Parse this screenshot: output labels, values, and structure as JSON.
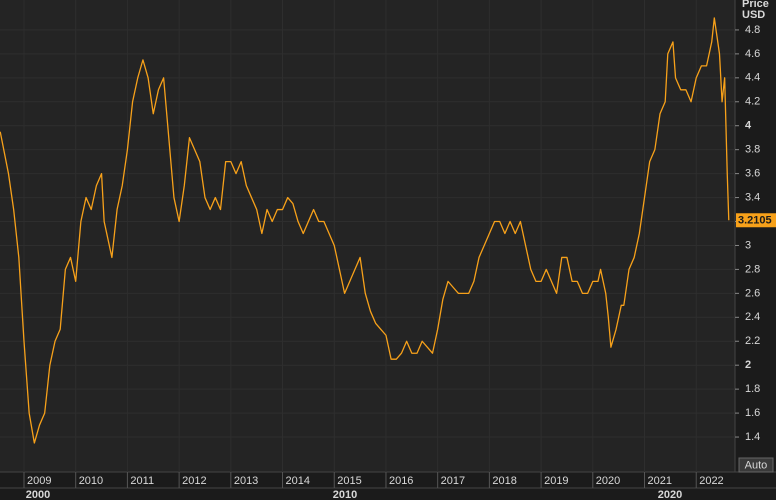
{
  "chart_data": {
    "type": "line",
    "axis_title": [
      "Price",
      "USD"
    ],
    "x_group_labels": [
      "2000",
      "2010",
      "2020"
    ],
    "button": "Auto",
    "last_value_label": "3.2105",
    "xlim": [
      2008.536,
      2022.75
    ],
    "xticks": [
      2009,
      2010,
      2011,
      2012,
      2013,
      2014,
      2015,
      2016,
      2017,
      2018,
      2019,
      2020,
      2021,
      2022
    ],
    "ylim": [
      1.108,
      5.05
    ],
    "yticks": [
      1.4,
      1.6,
      1.8,
      2,
      2.2,
      2.4,
      2.6,
      2.8,
      3,
      3.2,
      3.4,
      3.6,
      3.8,
      4,
      4.2,
      4.4,
      4.6,
      4.8
    ],
    "bold_yticks": [
      2,
      4
    ],
    "grid": true,
    "series": [
      {
        "color": "#f7a11a",
        "x": [
          2008.54,
          2008.7,
          2008.8,
          2008.9,
          2009.0,
          2009.1,
          2009.2,
          2009.3,
          2009.4,
          2009.5,
          2009.6,
          2009.7,
          2009.8,
          2009.9,
          2010.0,
          2010.1,
          2010.2,
          2010.3,
          2010.4,
          2010.5,
          2010.55,
          2010.7,
          2010.8,
          2010.9,
          2011.0,
          2011.1,
          2011.2,
          2011.3,
          2011.4,
          2011.5,
          2011.6,
          2011.7,
          2011.8,
          2011.9,
          2012.0,
          2012.1,
          2012.2,
          2012.3,
          2012.4,
          2012.5,
          2012.6,
          2012.7,
          2012.8,
          2012.9,
          2013.0,
          2013.1,
          2013.2,
          2013.3,
          2013.4,
          2013.5,
          2013.6,
          2013.7,
          2013.8,
          2013.9,
          2014.0,
          2014.1,
          2014.2,
          2014.3,
          2014.4,
          2014.5,
          2014.6,
          2014.7,
          2014.8,
          2014.9,
          2015.0,
          2015.1,
          2015.2,
          2015.3,
          2015.4,
          2015.5,
          2015.6,
          2015.7,
          2015.8,
          2015.9,
          2016.0,
          2016.1,
          2016.2,
          2016.3,
          2016.4,
          2016.5,
          2016.6,
          2016.7,
          2016.8,
          2016.9,
          2017.0,
          2017.1,
          2017.2,
          2017.3,
          2017.4,
          2017.5,
          2017.6,
          2017.7,
          2017.8,
          2017.9,
          2018.0,
          2018.1,
          2018.2,
          2018.3,
          2018.4,
          2018.5,
          2018.6,
          2018.7,
          2018.8,
          2018.9,
          2019.0,
          2019.1,
          2019.2,
          2019.3,
          2019.4,
          2019.5,
          2019.6,
          2019.7,
          2019.8,
          2019.9,
          2020.0,
          2020.1,
          2020.15,
          2020.25,
          2020.3,
          2020.35,
          2020.45,
          2020.55,
          2020.6,
          2020.7,
          2020.8,
          2020.9,
          2021.0,
          2021.1,
          2021.2,
          2021.3,
          2021.4,
          2021.45,
          2021.55,
          2021.6,
          2021.7,
          2021.8,
          2021.9,
          2022.0,
          2022.1,
          2022.2,
          2022.3,
          2022.35,
          2022.45,
          2022.5,
          2022.55,
          2022.6,
          2022.63
        ],
        "values": [
          3.95,
          3.6,
          3.3,
          2.9,
          2.2,
          1.6,
          1.35,
          1.5,
          1.6,
          2.0,
          2.2,
          2.3,
          2.8,
          2.9,
          2.7,
          3.2,
          3.4,
          3.3,
          3.5,
          3.6,
          3.2,
          2.9,
          3.3,
          3.5,
          3.8,
          4.2,
          4.4,
          4.55,
          4.4,
          4.1,
          4.3,
          4.4,
          3.9,
          3.4,
          3.2,
          3.5,
          3.9,
          3.8,
          3.7,
          3.4,
          3.3,
          3.4,
          3.3,
          3.7,
          3.7,
          3.6,
          3.7,
          3.5,
          3.4,
          3.3,
          3.1,
          3.3,
          3.2,
          3.3,
          3.3,
          3.4,
          3.35,
          3.2,
          3.1,
          3.2,
          3.3,
          3.2,
          3.2,
          3.1,
          3.0,
          2.8,
          2.6,
          2.7,
          2.8,
          2.9,
          2.6,
          2.45,
          2.35,
          2.3,
          2.25,
          2.05,
          2.05,
          2.1,
          2.2,
          2.1,
          2.1,
          2.2,
          2.15,
          2.1,
          2.3,
          2.55,
          2.7,
          2.65,
          2.6,
          2.6,
          2.6,
          2.7,
          2.9,
          3.0,
          3.1,
          3.2,
          3.2,
          3.1,
          3.2,
          3.1,
          3.2,
          3.0,
          2.8,
          2.7,
          2.7,
          2.8,
          2.7,
          2.6,
          2.9,
          2.9,
          2.7,
          2.7,
          2.6,
          2.6,
          2.7,
          2.7,
          2.8,
          2.6,
          2.4,
          2.15,
          2.3,
          2.5,
          2.5,
          2.8,
          2.9,
          3.1,
          3.4,
          3.7,
          3.8,
          4.1,
          4.2,
          4.6,
          4.7,
          4.4,
          4.3,
          4.3,
          4.2,
          4.4,
          4.5,
          4.5,
          4.7,
          4.9,
          4.6,
          4.2,
          4.4,
          3.6,
          3.2105
        ]
      }
    ]
  }
}
